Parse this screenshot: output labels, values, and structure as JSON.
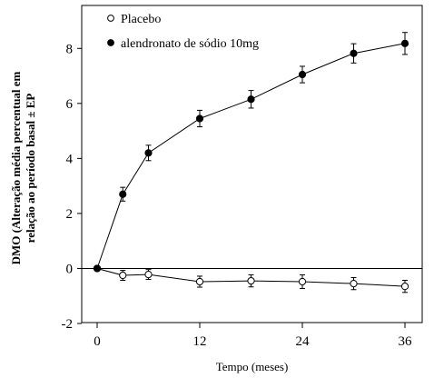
{
  "chart_data": {
    "type": "line",
    "x": [
      0,
      3,
      6,
      12,
      18,
      24,
      30,
      36
    ],
    "series": [
      {
        "name": "Placebo",
        "marker": "open-circle",
        "values": [
          0,
          -0.25,
          -0.22,
          -0.48,
          -0.45,
          -0.48,
          -0.55,
          -0.65
        ],
        "error": [
          0.06,
          0.18,
          0.18,
          0.2,
          0.22,
          0.25,
          0.22,
          0.22
        ]
      },
      {
        "name": "alendronato de sódio 10mg",
        "marker": "filled-circle",
        "values": [
          0,
          2.7,
          4.2,
          5.45,
          6.15,
          7.05,
          7.82,
          8.18
        ],
        "error": [
          0.06,
          0.25,
          0.28,
          0.3,
          0.32,
          0.3,
          0.35,
          0.4
        ]
      }
    ],
    "xlabel": "Tempo (meses)",
    "ylabel_line1": "DMO (Alteração média percentual em",
    "ylabel_line2": "relação ao período basal ± EP",
    "xticks": [
      0,
      12,
      24,
      36
    ],
    "yticks": [
      -2,
      0,
      2,
      4,
      6,
      8
    ],
    "xlim": [
      0,
      36
    ],
    "ylim": [
      -2,
      9
    ],
    "reference_line_y": 0,
    "legend_position": "top-left",
    "grid": false,
    "colors": {
      "line": "#000000",
      "marker_fill_open": "#ffffff",
      "marker_fill_filled": "#000000"
    }
  }
}
